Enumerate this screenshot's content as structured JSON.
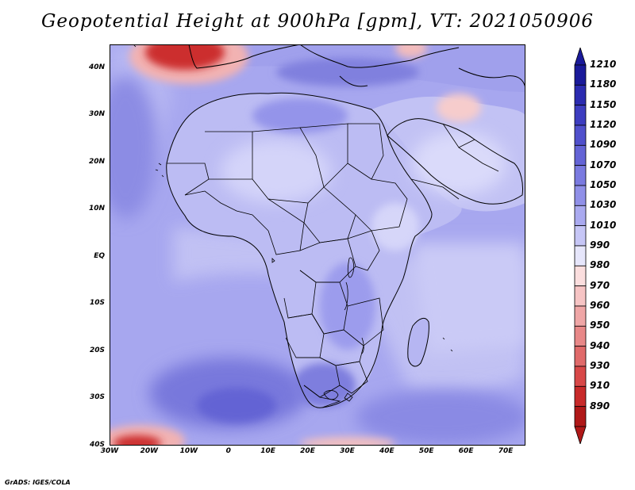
{
  "title": "Geopotential Height at 900hPa [gpm], VT: 2021050906",
  "credit": "GrADS: IGES/COLA",
  "lat_labels": [
    "40N",
    "30N",
    "20N",
    "10N",
    "EQ",
    "10S",
    "20S",
    "30S",
    "40S"
  ],
  "lat_values": [
    40,
    30,
    20,
    10,
    0,
    -10,
    -20,
    -30,
    -40
  ],
  "lon_labels": [
    "30W",
    "20W",
    "10W",
    "0",
    "10E",
    "20E",
    "30E",
    "40E",
    "50E",
    "60E",
    "70E"
  ],
  "lon_values": [
    -30,
    -20,
    -10,
    0,
    10,
    20,
    30,
    40,
    50,
    60,
    70
  ],
  "map": {
    "lon_min": -30,
    "lon_max": 75,
    "lat_min": -40,
    "lat_max": 45
  },
  "colorbar": {
    "levels": [
      "1210",
      "1180",
      "1150",
      "1120",
      "1090",
      "1070",
      "1050",
      "1030",
      "1010",
      "990",
      "980",
      "970",
      "960",
      "950",
      "940",
      "930",
      "910",
      "890"
    ],
    "colors": [
      "#1a1a9a",
      "#2b2bb0",
      "#3d3dc0",
      "#5050cc",
      "#6464d6",
      "#7a7ae0",
      "#9090e8",
      "#aaaaf0",
      "#c6c6f6",
      "#e6e6fb",
      "#fbdede",
      "#f6c4c4",
      "#efa6a6",
      "#e88888",
      "#e06a6a",
      "#d84848",
      "#c82a2a",
      "#b01818"
    ]
  },
  "colors": {
    "ocean_base": "#9494ea",
    "ocean_light": "#c4c4f4",
    "land_base": "#b8b8f2",
    "land_light": "#d6d6f9",
    "land_mid": "#a2a2ee",
    "high_low": "#5c5cd4",
    "low_center": "#4444c4",
    "heat_low": "#cc2f2f",
    "heat_low_edge": "#f2b2b2",
    "border": "#000000"
  }
}
